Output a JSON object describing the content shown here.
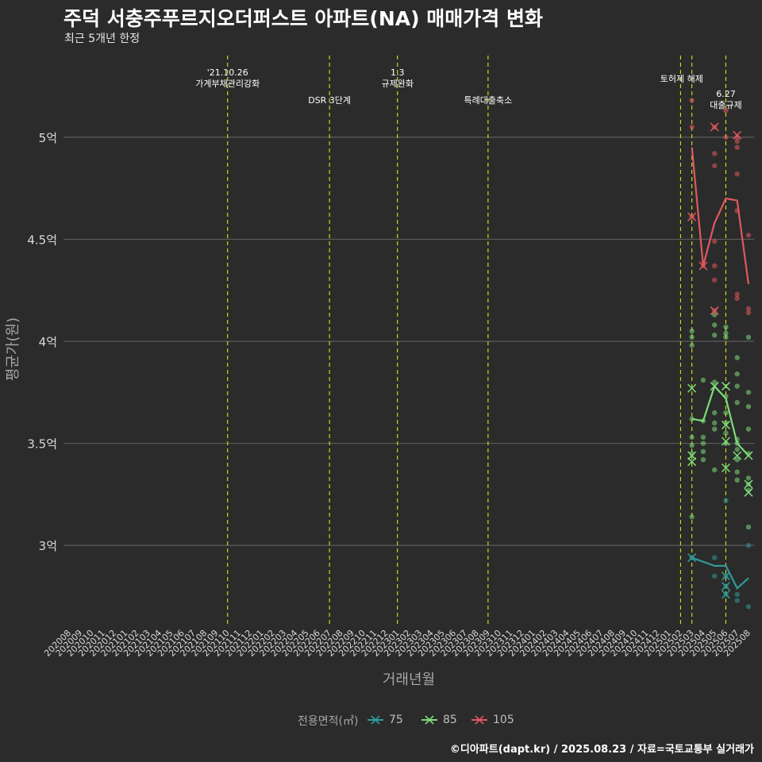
{
  "title": "주덕 서충주푸르지오더퍼스트 아파트(NA) 매매가격 변화",
  "subtitle": "최근 5개년 한정",
  "caption": "©디아파트(dapt.kr) / 2025.08.23 / 자료=국토교통부 실거래가",
  "colors": {
    "background": "#2b2b2b",
    "grid": "#5c5c5c",
    "event_line": "#d7e51a",
    "area_75": "#2f9a99",
    "area_85": "#7ddc7a",
    "area_105": "#e0585f"
  },
  "legend": {
    "title": "전용면적(㎡)",
    "items": [
      {
        "label": "75",
        "color": "#2f9a99"
      },
      {
        "label": "85",
        "color": "#7ddc7a"
      },
      {
        "label": "105",
        "color": "#e0585f"
      }
    ]
  },
  "chart_data": {
    "type": "line",
    "xlabel": "거래년월",
    "ylabel": "평균가(원)",
    "ylim": [
      2.6,
      5.4
    ],
    "yticks": [
      {
        "value": 3.0,
        "label": "3억"
      },
      {
        "value": 3.5,
        "label": "3.5억"
      },
      {
        "value": 4.0,
        "label": "4억"
      },
      {
        "value": 4.5,
        "label": "4.5억"
      },
      {
        "value": 5.0,
        "label": "5억"
      }
    ],
    "grid": true,
    "legend_position": "bottom",
    "x_categories": [
      "202008",
      "202009",
      "202010",
      "202011",
      "202012",
      "202101",
      "202102",
      "202103",
      "202104",
      "202105",
      "202106",
      "202107",
      "202108",
      "202109",
      "202110",
      "202111",
      "202112",
      "202201",
      "202202",
      "202203",
      "202204",
      "202205",
      "202206",
      "202207",
      "202208",
      "202209",
      "202210",
      "202211",
      "202212",
      "202301",
      "202302",
      "202303",
      "202304",
      "202305",
      "202306",
      "202307",
      "202308",
      "202309",
      "202310",
      "202311",
      "202312",
      "202401",
      "202402",
      "202403",
      "202404",
      "202405",
      "202406",
      "202407",
      "202408",
      "202409",
      "202410",
      "202411",
      "202412",
      "202501",
      "202502",
      "202503",
      "202504",
      "202505",
      "202506",
      "202507",
      "202508"
    ],
    "events": [
      {
        "x": "202110",
        "label": "'21.10.26\n가계부채관리강화",
        "row": 0
      },
      {
        "x": "202207",
        "label": "DSR 3단계",
        "row": 1
      },
      {
        "x": "202301",
        "label": "1.3\n규제완화",
        "row": 0
      },
      {
        "x": "202309",
        "label": "특례대출축소",
        "row": 1
      },
      {
        "x": "202502",
        "label": "",
        "row": 0
      },
      {
        "x": "202503",
        "label": "토허제 해제",
        "row": 0,
        "offset": -0.9
      },
      {
        "x": "202506",
        "label": "6.27\n대출규제",
        "row": 1
      }
    ],
    "series": [
      {
        "name": "75",
        "line": [
          {
            "x": "202503",
            "y": 2.94
          },
          {
            "x": "202505",
            "y": 2.9
          },
          {
            "x": "202506",
            "y": 2.9
          },
          {
            "x": "202507",
            "y": 2.79
          },
          {
            "x": "202508",
            "y": 2.84
          }
        ],
        "points": [
          {
            "x": "202503",
            "y": 2.94
          },
          {
            "x": "202505",
            "y": 2.94
          },
          {
            "x": "202505",
            "y": 2.85
          },
          {
            "x": "202506",
            "y": 3.22
          },
          {
            "x": "202506",
            "y": 2.85
          },
          {
            "x": "202506",
            "y": 2.8
          },
          {
            "x": "202506",
            "y": 2.76
          },
          {
            "x": "202507",
            "y": 2.76
          },
          {
            "x": "202507",
            "y": 2.73
          },
          {
            "x": "202508",
            "y": 3.0
          },
          {
            "x": "202508",
            "y": 2.7
          }
        ],
        "marks": [
          {
            "x": "202503",
            "y": 2.94
          },
          {
            "x": "202506",
            "y": 2.85
          },
          {
            "x": "202506",
            "y": 2.8
          },
          {
            "x": "202506",
            "y": 2.76
          }
        ]
      },
      {
        "name": "85",
        "line": [
          {
            "x": "202503",
            "y": 3.62
          },
          {
            "x": "202504",
            "y": 3.61
          },
          {
            "x": "202505",
            "y": 3.78
          },
          {
            "x": "202506",
            "y": 3.72
          },
          {
            "x": "202507",
            "y": 3.5
          },
          {
            "x": "202508",
            "y": 3.44
          }
        ],
        "points": [
          {
            "x": "202503",
            "y": 4.05
          },
          {
            "x": "202503",
            "y": 4.02
          },
          {
            "x": "202503",
            "y": 3.98
          },
          {
            "x": "202503",
            "y": 3.62
          },
          {
            "x": "202503",
            "y": 3.53
          },
          {
            "x": "202503",
            "y": 3.49
          },
          {
            "x": "202503",
            "y": 3.45
          },
          {
            "x": "202503",
            "y": 3.14
          },
          {
            "x": "202504",
            "y": 3.81
          },
          {
            "x": "202504",
            "y": 3.61
          },
          {
            "x": "202504",
            "y": 3.53
          },
          {
            "x": "202504",
            "y": 3.5
          },
          {
            "x": "202504",
            "y": 3.46
          },
          {
            "x": "202504",
            "y": 3.42
          },
          {
            "x": "202505",
            "y": 4.13
          },
          {
            "x": "202505",
            "y": 4.08
          },
          {
            "x": "202505",
            "y": 4.03
          },
          {
            "x": "202505",
            "y": 3.8
          },
          {
            "x": "202505",
            "y": 3.65
          },
          {
            "x": "202505",
            "y": 3.6
          },
          {
            "x": "202505",
            "y": 3.57
          },
          {
            "x": "202505",
            "y": 3.37
          },
          {
            "x": "202506",
            "y": 4.07
          },
          {
            "x": "202506",
            "y": 4.04
          },
          {
            "x": "202506",
            "y": 4.02
          },
          {
            "x": "202506",
            "y": 3.73
          },
          {
            "x": "202506",
            "y": 3.65
          },
          {
            "x": "202506",
            "y": 3.6
          },
          {
            "x": "202506",
            "y": 3.55
          },
          {
            "x": "202506",
            "y": 3.5
          },
          {
            "x": "202507",
            "y": 3.92
          },
          {
            "x": "202507",
            "y": 3.84
          },
          {
            "x": "202507",
            "y": 3.78
          },
          {
            "x": "202507",
            "y": 3.7
          },
          {
            "x": "202507",
            "y": 3.52
          },
          {
            "x": "202507",
            "y": 3.5
          },
          {
            "x": "202507",
            "y": 3.47
          },
          {
            "x": "202507",
            "y": 3.42
          },
          {
            "x": "202507",
            "y": 3.36
          },
          {
            "x": "202507",
            "y": 3.32
          },
          {
            "x": "202508",
            "y": 4.02
          },
          {
            "x": "202508",
            "y": 3.75
          },
          {
            "x": "202508",
            "y": 3.68
          },
          {
            "x": "202508",
            "y": 3.57
          },
          {
            "x": "202508",
            "y": 3.45
          },
          {
            "x": "202508",
            "y": 3.33
          },
          {
            "x": "202508",
            "y": 3.3
          },
          {
            "x": "202508",
            "y": 3.27
          },
          {
            "x": "202508",
            "y": 3.09
          }
        ],
        "marks": [
          {
            "x": "202503",
            "y": 3.77
          },
          {
            "x": "202503",
            "y": 3.44
          },
          {
            "x": "202503",
            "y": 3.41
          },
          {
            "x": "202505",
            "y": 3.78
          },
          {
            "x": "202506",
            "y": 3.78
          },
          {
            "x": "202506",
            "y": 3.59
          },
          {
            "x": "202506",
            "y": 3.51
          },
          {
            "x": "202506",
            "y": 3.38
          },
          {
            "x": "202507",
            "y": 3.44
          },
          {
            "x": "202508",
            "y": 3.44
          },
          {
            "x": "202508",
            "y": 3.3
          },
          {
            "x": "202508",
            "y": 3.26
          }
        ]
      },
      {
        "name": "105",
        "line": [
          {
            "x": "202503",
            "y": 4.95
          },
          {
            "x": "202504",
            "y": 4.37
          },
          {
            "x": "202505",
            "y": 4.58
          },
          {
            "x": "202506",
            "y": 4.7
          },
          {
            "x": "202507",
            "y": 4.69
          },
          {
            "x": "202508",
            "y": 4.28
          }
        ],
        "points": [
          {
            "x": "202503",
            "y": 5.18
          },
          {
            "x": "202503",
            "y": 5.05
          },
          {
            "x": "202503",
            "y": 4.61
          },
          {
            "x": "202504",
            "y": 4.37
          },
          {
            "x": "202505",
            "y": 5.05
          },
          {
            "x": "202505",
            "y": 4.92
          },
          {
            "x": "202505",
            "y": 4.86
          },
          {
            "x": "202505",
            "y": 4.49
          },
          {
            "x": "202505",
            "y": 4.37
          },
          {
            "x": "202505",
            "y": 4.3
          },
          {
            "x": "202505",
            "y": 4.15
          },
          {
            "x": "202506",
            "y": 5.13
          },
          {
            "x": "202506",
            "y": 5.0
          },
          {
            "x": "202507",
            "y": 5.0
          },
          {
            "x": "202507",
            "y": 4.98
          },
          {
            "x": "202507",
            "y": 4.95
          },
          {
            "x": "202507",
            "y": 4.82
          },
          {
            "x": "202507",
            "y": 4.64
          },
          {
            "x": "202507",
            "y": 4.23
          },
          {
            "x": "202507",
            "y": 4.21
          },
          {
            "x": "202508",
            "y": 4.52
          },
          {
            "x": "202508",
            "y": 4.16
          },
          {
            "x": "202508",
            "y": 4.14
          }
        ],
        "marks": [
          {
            "x": "202503",
            "y": 4.61
          },
          {
            "x": "202504",
            "y": 4.37
          },
          {
            "x": "202505",
            "y": 5.05
          },
          {
            "x": "202505",
            "y": 4.15
          },
          {
            "x": "202507",
            "y": 5.01
          }
        ]
      }
    ]
  }
}
